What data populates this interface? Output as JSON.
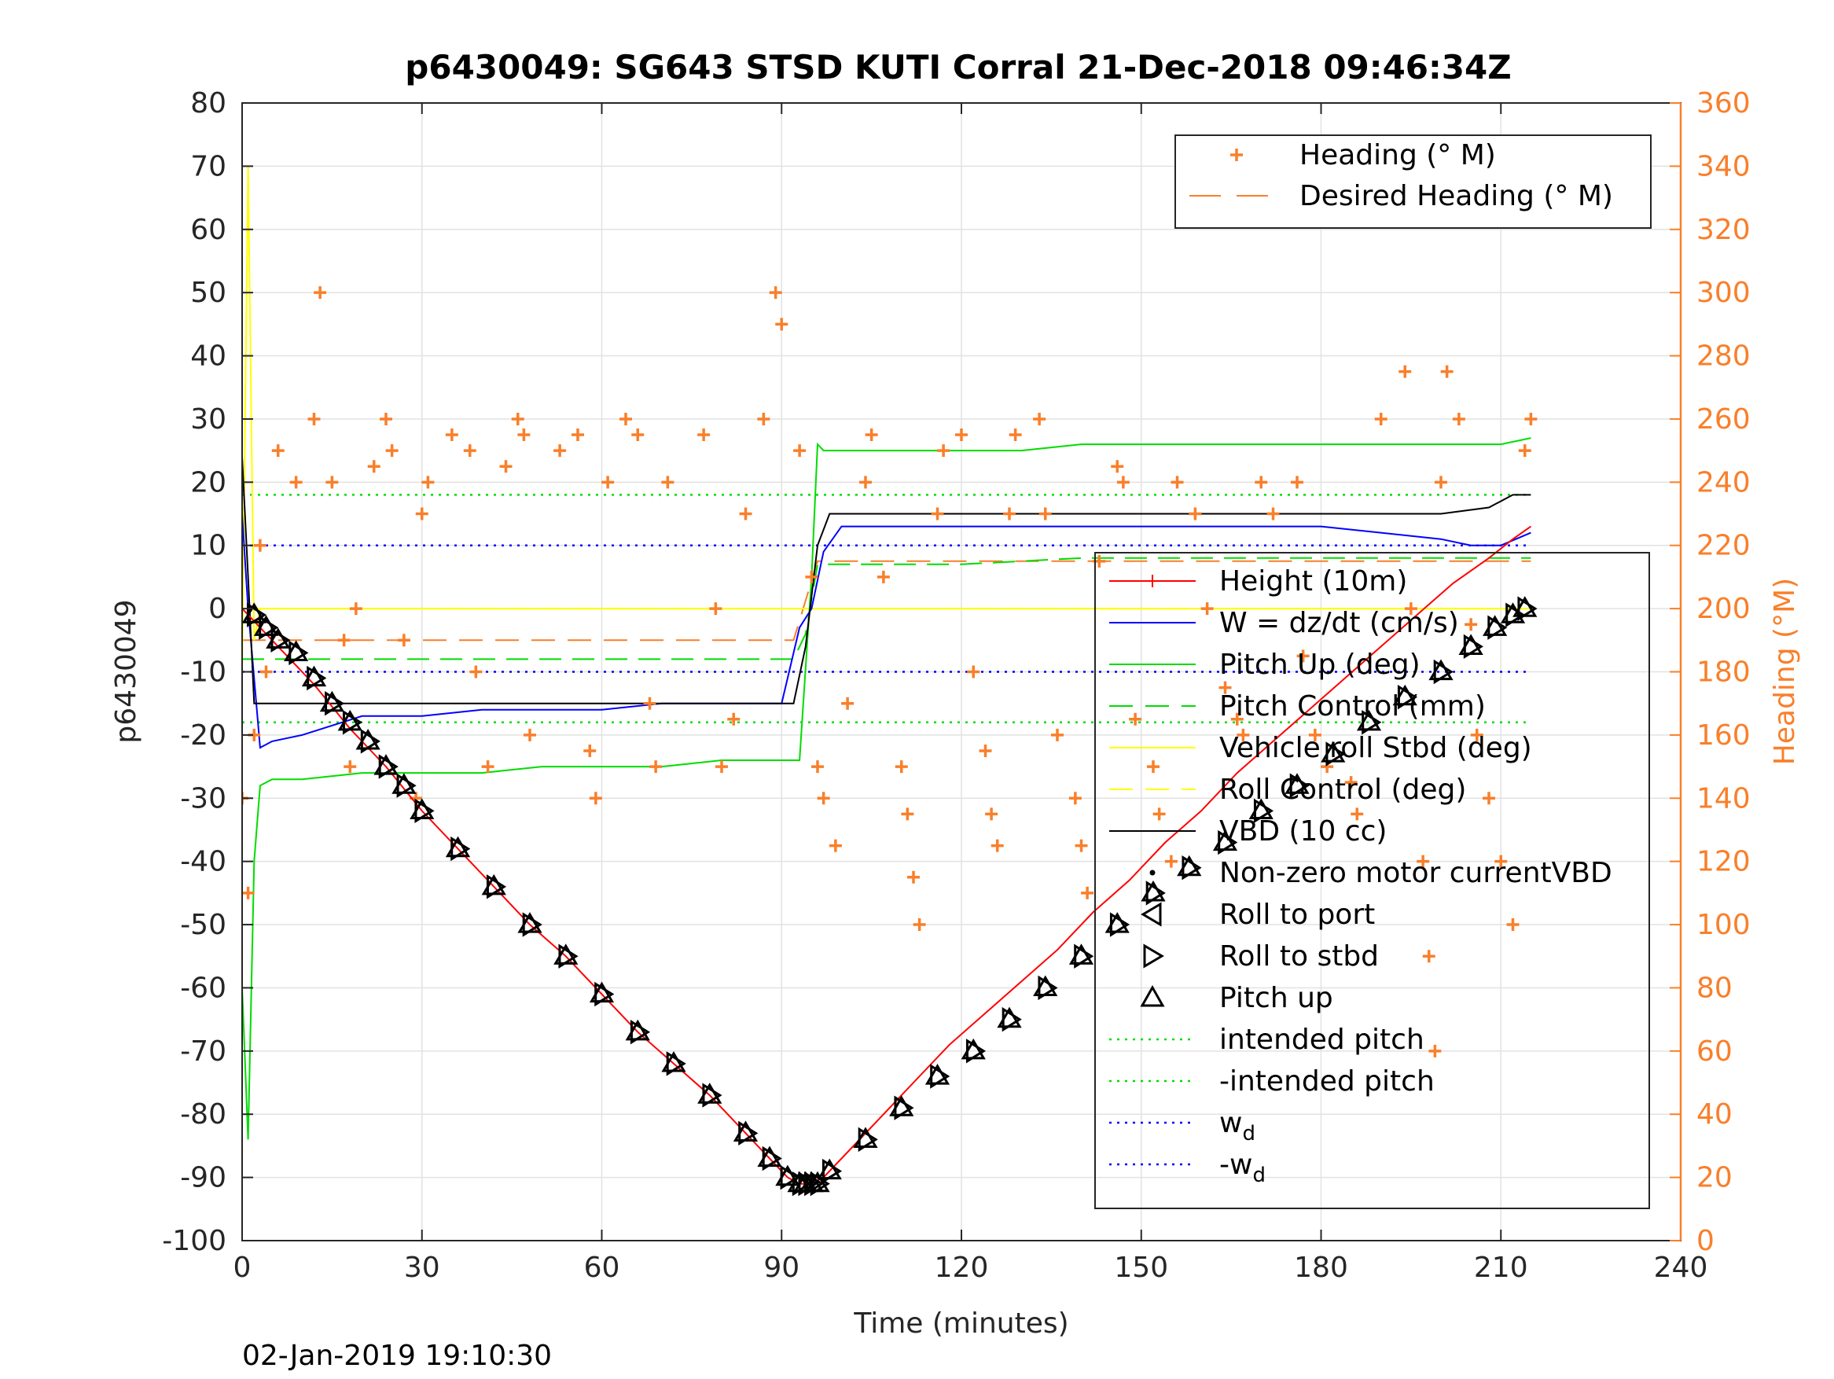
{
  "chart_data": {
    "type": "line",
    "title": "p6430049: SG643 STSD KUTI Corral 21-Dec-2018 09:46:34Z",
    "xlabel": "Time (minutes)",
    "ylabel_left": "p6430049",
    "ylabel_right": "Heading (°M)",
    "footer": "02-Jan-2019 19:10:30",
    "xlim": [
      0,
      240
    ],
    "xticks": [
      0,
      30,
      60,
      90,
      120,
      150,
      180,
      210,
      240
    ],
    "ylim_left": [
      -100,
      80
    ],
    "yticks_left": [
      -100,
      -90,
      -80,
      -70,
      -60,
      -50,
      -40,
      -30,
      -20,
      -10,
      0,
      10,
      20,
      30,
      40,
      50,
      60,
      70,
      80
    ],
    "ylim_right": [
      0,
      360
    ],
    "yticks_right": [
      0,
      20,
      40,
      60,
      80,
      100,
      120,
      140,
      160,
      180,
      200,
      220,
      240,
      260,
      280,
      300,
      320,
      340,
      360
    ],
    "grid": true,
    "colors": {
      "height": "#ff0000",
      "w": "#0000ff",
      "pitch": "#00dd00",
      "roll": "#ffff00",
      "vbd": "#000000",
      "heading": "#f97f2a",
      "right_axis": "#f97f2a"
    },
    "legend_heading": {
      "placement": "top-right",
      "entries": [
        "Heading (° M)",
        "Desired Heading (° M)"
      ]
    },
    "legend_main": {
      "placement": "right",
      "entries": [
        "Height (10m)",
        "W = dz/dt (cm/s)",
        "Pitch Up (deg)",
        "Pitch Control (mm)",
        "Vehicle roll Stbd (deg)",
        "Roll Control (deg)",
        "VBD (10 cc)",
        "Non-zero motor currentVBD",
        "Roll to port",
        "Roll to stbd",
        "Pitch up",
        "intended pitch",
        "-intended pitch",
        "w",
        "-w"
      ],
      "subscript": "d"
    },
    "series": [
      {
        "name": "Height (10m)",
        "axis": "left",
        "x": [
          0,
          2,
          5,
          8,
          12,
          18,
          24,
          30,
          36,
          42,
          48,
          54,
          60,
          66,
          72,
          78,
          84,
          88,
          91,
          93,
          95,
          97,
          100,
          106,
          112,
          118,
          124,
          130,
          136,
          142,
          148,
          154,
          160,
          166,
          172,
          178,
          184,
          190,
          196,
          202,
          208,
          212,
          215
        ],
        "y": [
          0,
          -2,
          -5,
          -8,
          -12,
          -19,
          -25,
          -32,
          -38,
          -44,
          -50,
          -55,
          -61,
          -67,
          -72,
          -77,
          -83,
          -87,
          -90,
          -91,
          -91,
          -90,
          -87,
          -81,
          -75,
          -69,
          -64,
          -59,
          -54,
          -48,
          -43,
          -37,
          -32,
          -26,
          -21,
          -16,
          -11,
          -6,
          -1,
          4,
          8,
          11,
          13
        ]
      },
      {
        "name": "W = dz/dt (cm/s)",
        "axis": "left",
        "x": [
          0,
          1,
          3,
          5,
          10,
          20,
          30,
          40,
          50,
          60,
          70,
          80,
          90,
          93,
          95,
          97,
          100,
          110,
          120,
          130,
          140,
          150,
          160,
          170,
          180,
          190,
          200,
          205,
          210,
          215
        ],
        "y": [
          15,
          0,
          -22,
          -21,
          -20,
          -17,
          -17,
          -16,
          -16,
          -16,
          -15,
          -15,
          -15,
          -3,
          0,
          9,
          13,
          13,
          13,
          13,
          13,
          13,
          13,
          13,
          13,
          12,
          11,
          10,
          10,
          12
        ]
      },
      {
        "name": "Pitch Up (deg)",
        "axis": "left",
        "x": [
          0,
          1,
          2,
          3,
          5,
          10,
          20,
          30,
          40,
          50,
          60,
          70,
          80,
          90,
          93,
          95,
          96,
          97,
          100,
          110,
          120,
          130,
          140,
          150,
          160,
          170,
          180,
          190,
          200,
          210,
          215
        ],
        "y": [
          -60,
          -84,
          -40,
          -28,
          -27,
          -27,
          -26,
          -26,
          -26,
          -25,
          -25,
          -25,
          -24,
          -24,
          -24,
          5,
          26,
          25,
          25,
          25,
          25,
          25,
          26,
          26,
          26,
          26,
          26,
          26,
          26,
          26,
          27
        ]
      },
      {
        "name": "Pitch Control (mm)",
        "axis": "left",
        "x": [
          0,
          2,
          20,
          40,
          60,
          80,
          92,
          94,
          96,
          100,
          120,
          140,
          160,
          180,
          200,
          215
        ],
        "y": [
          -8,
          -8,
          -8,
          -8,
          -8,
          -8,
          -8,
          -4,
          7,
          7,
          7,
          8,
          8,
          8,
          8,
          8
        ]
      },
      {
        "name": "Vehicle roll Stbd (deg)",
        "axis": "left",
        "x": [
          0,
          1,
          2,
          3,
          10,
          30,
          60,
          90,
          100,
          130,
          160,
          190,
          215
        ],
        "y": [
          -10,
          70,
          -5,
          0,
          0,
          0,
          0,
          0,
          0,
          0,
          0,
          0,
          0
        ]
      },
      {
        "name": "Roll Control (deg)",
        "axis": "left",
        "x": [
          0,
          10,
          30,
          60,
          90,
          100,
          130,
          160,
          190,
          215
        ],
        "y": [
          0,
          0,
          0,
          0,
          0,
          0,
          0,
          0,
          0,
          0
        ]
      },
      {
        "name": "VBD (10 cc)",
        "axis": "left",
        "x": [
          0,
          1,
          2,
          30,
          60,
          92,
          94,
          96,
          98,
          130,
          160,
          190,
          200,
          208,
          212,
          215
        ],
        "y": [
          24,
          5,
          -15,
          -15,
          -15,
          -15,
          -6,
          10,
          15,
          15,
          15,
          15,
          15,
          16,
          18,
          18
        ]
      },
      {
        "name": "intended pitch",
        "axis": "left",
        "x": [
          0,
          215
        ],
        "y": [
          18,
          18
        ]
      },
      {
        "name": "-intended pitch",
        "axis": "left",
        "x": [
          0,
          215
        ],
        "y": [
          -18,
          -18
        ]
      },
      {
        "name": "w",
        "axis": "left",
        "x": [
          0,
          215
        ],
        "y": [
          10,
          10
        ]
      },
      {
        "name": "-w",
        "axis": "left",
        "x": [
          0,
          215
        ],
        "y": [
          -10,
          -10
        ]
      },
      {
        "name": "Desired Heading (° M)",
        "axis": "right",
        "x": [
          0,
          92,
          96,
          215
        ],
        "y": [
          190,
          190,
          215,
          215
        ]
      },
      {
        "name": "Heading (° M)",
        "axis": "right",
        "marker": "+",
        "x": [
          0,
          1,
          2,
          3,
          4,
          6,
          9,
          12,
          13,
          15,
          17,
          18,
          19,
          22,
          24,
          25,
          27,
          29,
          30,
          31,
          35,
          38,
          39,
          41,
          44,
          46,
          47,
          48,
          53,
          56,
          58,
          59,
          61,
          64,
          66,
          68,
          69,
          71,
          77,
          79,
          80,
          82,
          84,
          87,
          89,
          90,
          93,
          95,
          96,
          97,
          99,
          101,
          104,
          105,
          107,
          110,
          111,
          112,
          113,
          116,
          117,
          120,
          122,
          124,
          125,
          126,
          128,
          129,
          133,
          134,
          136,
          139,
          140,
          141,
          143,
          146,
          147,
          149,
          152,
          153,
          155,
          156,
          159,
          161,
          164,
          166,
          167,
          170,
          172,
          176,
          177,
          179,
          181,
          185,
          186,
          190,
          194,
          195,
          197,
          198,
          199,
          200,
          201,
          203,
          205,
          206,
          208,
          210,
          212,
          214,
          215
        ],
        "y": [
          140,
          110,
          160,
          220,
          180,
          250,
          240,
          260,
          300,
          240,
          190,
          150,
          200,
          245,
          260,
          250,
          190,
          140,
          230,
          240,
          255,
          250,
          180,
          150,
          245,
          260,
          255,
          160,
          250,
          255,
          155,
          140,
          240,
          260,
          255,
          170,
          150,
          240,
          255,
          200,
          150,
          165,
          230,
          260,
          300,
          290,
          250,
          210,
          150,
          140,
          125,
          170,
          240,
          255,
          210,
          150,
          135,
          115,
          100,
          230,
          250,
          255,
          180,
          155,
          135,
          125,
          230,
          255,
          260,
          230,
          160,
          140,
          125,
          110,
          215,
          245,
          240,
          165,
          150,
          135,
          120,
          240,
          230,
          200,
          175,
          165,
          160,
          240,
          230,
          240,
          185,
          160,
          150,
          145,
          135,
          260,
          275,
          200,
          120,
          90,
          60,
          240,
          275,
          260,
          195,
          160,
          140,
          120,
          100,
          250,
          260
        ]
      }
    ],
    "markers": {
      "pitch_up_x": [
        2,
        4,
        6,
        9,
        12,
        15,
        18,
        21,
        24,
        27,
        30,
        36,
        42,
        48,
        54,
        60,
        66,
        72,
        78,
        84,
        88,
        91,
        93,
        94,
        95,
        96,
        98,
        104,
        110,
        116,
        122,
        128,
        134,
        140,
        146,
        152,
        158,
        164,
        170,
        176,
        182,
        188,
        194,
        200,
        205,
        209,
        212,
        214
      ],
      "pitch_up_y": [
        -1,
        -3,
        -5,
        -7,
        -11,
        -15,
        -18,
        -21,
        -25,
        -28,
        -32,
        -38,
        -44,
        -50,
        -55,
        -61,
        -67,
        -72,
        -77,
        -83,
        -87,
        -90,
        -91,
        -91,
        -91,
        -91,
        -89,
        -84,
        -79,
        -74,
        -70,
        -65,
        -60,
        -55,
        -50,
        -45,
        -41,
        -37,
        -32,
        -28,
        -23,
        -18,
        -14,
        -10,
        -6,
        -3,
        -1,
        0
      ]
    }
  }
}
